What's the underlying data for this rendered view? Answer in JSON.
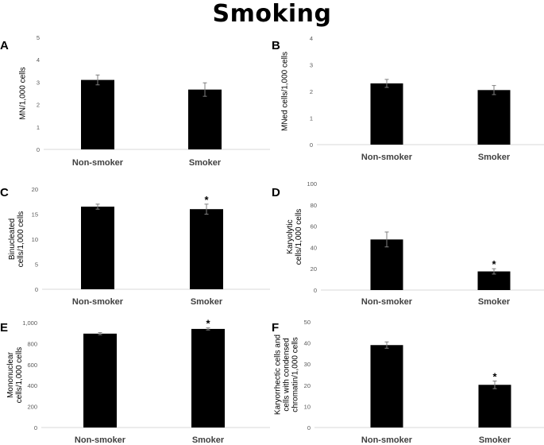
{
  "title": "Smoking",
  "chart_data": [
    {
      "panel": "A",
      "type": "bar",
      "categories": [
        "Non-smoker",
        "Smoker"
      ],
      "values": [
        3.1,
        2.67
      ],
      "errors": [
        0.22,
        0.3
      ],
      "significance": [
        "",
        ""
      ],
      "ylabel": [
        "MN/1,000 cells"
      ],
      "ylim": [
        0,
        5
      ],
      "yticks": [
        0,
        1,
        2,
        3,
        4,
        5
      ],
      "ytick_labels": [
        "0",
        "1",
        "2",
        "3",
        "4",
        "5"
      ]
    },
    {
      "panel": "B",
      "type": "bar",
      "categories": [
        "Non-smoker",
        "Smoker"
      ],
      "values": [
        2.3,
        2.05
      ],
      "errors": [
        0.15,
        0.17
      ],
      "significance": [
        "",
        ""
      ],
      "ylabel": [
        "MNed cells/1,000 cells"
      ],
      "ylim": [
        0,
        4
      ],
      "yticks": [
        0,
        1,
        2,
        3,
        4
      ],
      "ytick_labels": [
        "0",
        "1",
        "2",
        "3",
        "4"
      ]
    },
    {
      "panel": "C",
      "type": "bar",
      "categories": [
        "Non-smoker",
        "Smoker"
      ],
      "values": [
        16.5,
        16.0
      ],
      "errors": [
        0.5,
        1.0
      ],
      "significance": [
        "",
        "*"
      ],
      "ylabel": [
        "Binucleated",
        "cells/1,000 cells"
      ],
      "ylim": [
        0,
        20
      ],
      "yticks": [
        0,
        5,
        10,
        15,
        20
      ],
      "ytick_labels": [
        "0",
        "5",
        "10",
        "15",
        "20"
      ]
    },
    {
      "panel": "D",
      "type": "bar",
      "categories": [
        "Non-smoker",
        "Smoker"
      ],
      "values": [
        47.5,
        17.5
      ],
      "errors": [
        7.0,
        2.5
      ],
      "significance": [
        "",
        "*"
      ],
      "ylabel": [
        "Karyolytic",
        "cells/1,000 cells"
      ],
      "ylim": [
        0,
        100
      ],
      "yticks": [
        0,
        20,
        40,
        60,
        80,
        100
      ],
      "ytick_labels": [
        "0",
        "20",
        "40",
        "60",
        "80",
        "100"
      ]
    },
    {
      "panel": "E",
      "type": "bar",
      "categories": [
        "Non-smoker",
        "Smoker"
      ],
      "values": [
        895,
        940
      ],
      "errors": [
        10,
        10
      ],
      "significance": [
        "",
        "*"
      ],
      "ylabel": [
        "Mononuclear",
        "cells/1,000 cells"
      ],
      "ylim": [
        0,
        1000
      ],
      "yticks": [
        0,
        200,
        400,
        600,
        800,
        1000
      ],
      "ytick_labels": [
        "0",
        "200",
        "400",
        "600",
        "800",
        "1,000"
      ]
    },
    {
      "panel": "F",
      "type": "bar",
      "categories": [
        "Non-smoker",
        "Smoker"
      ],
      "values": [
        39,
        20.2
      ],
      "errors": [
        1.5,
        1.8
      ],
      "significance": [
        "",
        "*"
      ],
      "ylabel": [
        "Karyorrhectic cells and",
        "cells with condensed",
        "chromatin/1,000 cells"
      ],
      "ylim": [
        0,
        50
      ],
      "yticks": [
        0,
        10,
        20,
        30,
        40,
        50
      ],
      "ytick_labels": [
        "0",
        "10",
        "20",
        "30",
        "40",
        "50"
      ]
    }
  ]
}
